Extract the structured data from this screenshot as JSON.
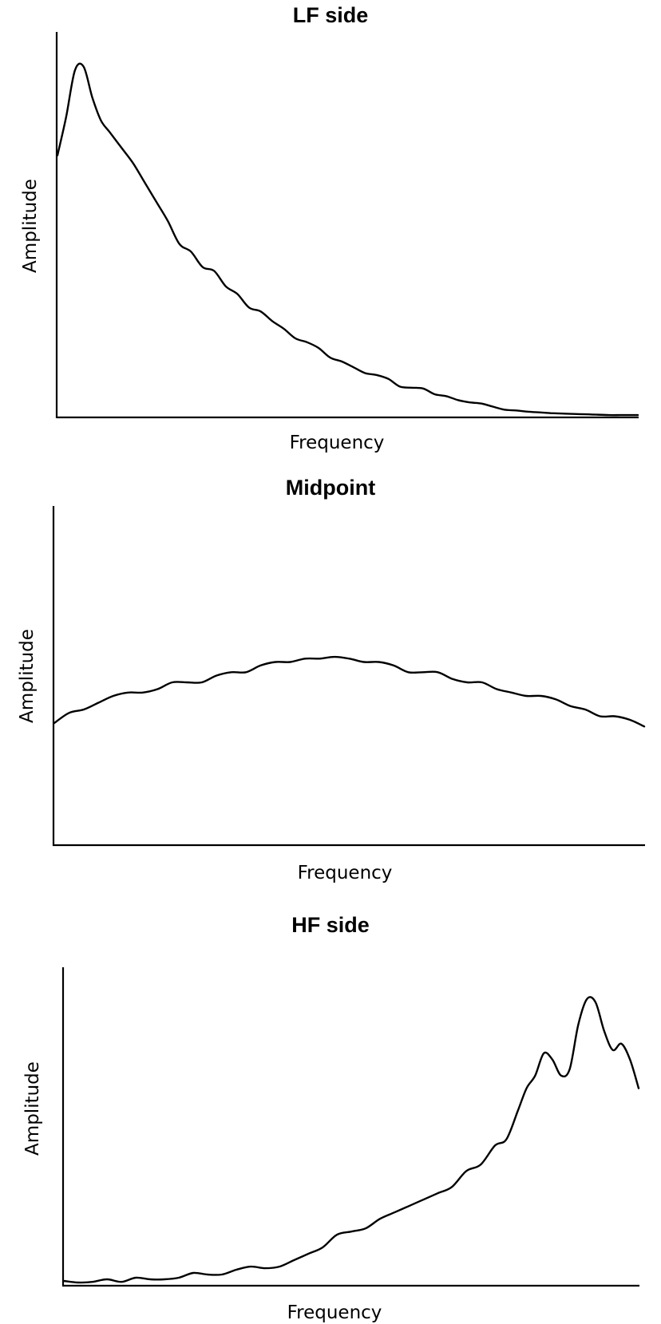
{
  "chart_data": [
    {
      "type": "line",
      "title": "LF side",
      "xlabel": "Frequency",
      "ylabel": "Amplitude",
      "xlim": [
        0,
        100
      ],
      "ylim": [
        0,
        100
      ],
      "grid": false,
      "series": [
        {
          "x": [
            0,
            1.5,
            3,
            4.5,
            6,
            7.5,
            9,
            11,
            13,
            15,
            17,
            19,
            21,
            23,
            25,
            27,
            29,
            31,
            33,
            35,
            37,
            39,
            41,
            43,
            45,
            47,
            49,
            51,
            53,
            55,
            57,
            59,
            61,
            63,
            65,
            67,
            69,
            71,
            73,
            75,
            77,
            79,
            81,
            83,
            85,
            87,
            89,
            91,
            93,
            95,
            97,
            99,
            100
          ],
          "y": [
            68,
            78,
            90,
            91,
            83,
            77,
            74,
            70,
            66,
            61,
            56,
            51,
            45,
            43,
            39,
            38,
            34,
            32,
            28.5,
            27.5,
            25,
            23,
            20.5,
            19.5,
            18,
            15.5,
            14.5,
            13,
            11.5,
            11,
            10,
            8,
            7.7,
            7.5,
            6,
            5.5,
            4.5,
            3.9,
            3.6,
            2.8,
            2,
            1.8,
            1.5,
            1.3,
            1.1,
            1,
            0.9,
            0.8,
            0.7,
            0.6,
            0.6,
            0.6,
            0.6
          ]
        }
      ]
    },
    {
      "type": "line",
      "title": "Midpoint",
      "xlabel": "Frequency",
      "ylabel": "Amplitude",
      "xlim": [
        0,
        100
      ],
      "ylim": [
        0,
        100
      ],
      "grid": false,
      "series": [
        {
          "x": [
            0,
            2.5,
            5,
            7.5,
            10,
            12.5,
            15,
            17.5,
            20,
            22.5,
            25,
            27.5,
            30,
            32.5,
            35,
            37.5,
            40,
            42.5,
            45,
            47.5,
            50,
            52.5,
            55,
            57.5,
            60,
            62.5,
            65,
            67.5,
            70,
            72.5,
            75,
            77.5,
            80,
            82.5,
            85,
            87.5,
            90,
            92.5,
            95,
            97.5,
            100
          ],
          "y": [
            36,
            39,
            40,
            42,
            44,
            45,
            45,
            46,
            48,
            48,
            48,
            50,
            51,
            51,
            53,
            54,
            54,
            55,
            55,
            55.5,
            55,
            54,
            54,
            53,
            51,
            51,
            51,
            49,
            48,
            48,
            46,
            45,
            44,
            44,
            43,
            41,
            40,
            38,
            38,
            37,
            35
          ]
        }
      ]
    },
    {
      "type": "line",
      "title": "HF side",
      "xlabel": "Frequency",
      "ylabel": "Amplitude",
      "xlim": [
        0,
        100
      ],
      "ylim": [
        0,
        100
      ],
      "grid": false,
      "series": [
        {
          "x": [
            0,
            2.5,
            5,
            7.5,
            10,
            12.5,
            15,
            17.5,
            20,
            22.5,
            25,
            27.5,
            30,
            32.5,
            35,
            37.5,
            40,
            42.5,
            45,
            47.5,
            50,
            52.5,
            55,
            57.5,
            60,
            62.5,
            65,
            67.5,
            70,
            72.5,
            75,
            77,
            79,
            80.5,
            82,
            83.5,
            85,
            86.5,
            88,
            89.5,
            91,
            92.5,
            94,
            95.5,
            97,
            98.5,
            100
          ],
          "y": [
            1.5,
            1,
            1.2,
            2,
            1.2,
            2.5,
            2,
            2,
            2.5,
            4,
            3.5,
            3.5,
            5,
            6,
            5.5,
            6,
            8,
            10,
            12,
            16,
            17,
            18,
            21,
            23,
            25,
            27,
            29,
            31,
            36,
            38,
            44,
            46,
            55,
            62,
            66,
            73,
            71,
            66,
            68,
            82,
            90,
            89,
            80,
            74,
            76,
            71,
            62
          ]
        }
      ]
    }
  ]
}
